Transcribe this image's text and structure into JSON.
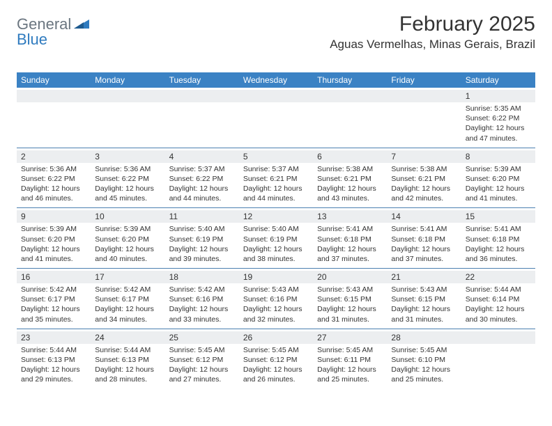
{
  "brand": {
    "text_general": "General",
    "text_blue": "Blue",
    "accent_color": "#2f7bbf"
  },
  "title": {
    "month": "February 2025",
    "location": "Aguas Vermelhas, Minas Gerais, Brazil"
  },
  "colors": {
    "header_bg": "#3b82c4",
    "header_text": "#ffffff",
    "band_bg": "#eceef0",
    "row_border": "#4a7fb0",
    "body_text": "#333333"
  },
  "dayHeaders": [
    "Sunday",
    "Monday",
    "Tuesday",
    "Wednesday",
    "Thursday",
    "Friday",
    "Saturday"
  ],
  "weeks": [
    [
      {
        "n": "",
        "sunrise": "",
        "sunset": "",
        "day_h": "",
        "day_m": ""
      },
      {
        "n": "",
        "sunrise": "",
        "sunset": "",
        "day_h": "",
        "day_m": ""
      },
      {
        "n": "",
        "sunrise": "",
        "sunset": "",
        "day_h": "",
        "day_m": ""
      },
      {
        "n": "",
        "sunrise": "",
        "sunset": "",
        "day_h": "",
        "day_m": ""
      },
      {
        "n": "",
        "sunrise": "",
        "sunset": "",
        "day_h": "",
        "day_m": ""
      },
      {
        "n": "",
        "sunrise": "",
        "sunset": "",
        "day_h": "",
        "day_m": ""
      },
      {
        "n": "1",
        "sunrise": "5:35 AM",
        "sunset": "6:22 PM",
        "day_h": "12",
        "day_m": "47"
      }
    ],
    [
      {
        "n": "2",
        "sunrise": "5:36 AM",
        "sunset": "6:22 PM",
        "day_h": "12",
        "day_m": "46"
      },
      {
        "n": "3",
        "sunrise": "5:36 AM",
        "sunset": "6:22 PM",
        "day_h": "12",
        "day_m": "45"
      },
      {
        "n": "4",
        "sunrise": "5:37 AM",
        "sunset": "6:22 PM",
        "day_h": "12",
        "day_m": "44"
      },
      {
        "n": "5",
        "sunrise": "5:37 AM",
        "sunset": "6:21 PM",
        "day_h": "12",
        "day_m": "44"
      },
      {
        "n": "6",
        "sunrise": "5:38 AM",
        "sunset": "6:21 PM",
        "day_h": "12",
        "day_m": "43"
      },
      {
        "n": "7",
        "sunrise": "5:38 AM",
        "sunset": "6:21 PM",
        "day_h": "12",
        "day_m": "42"
      },
      {
        "n": "8",
        "sunrise": "5:39 AM",
        "sunset": "6:20 PM",
        "day_h": "12",
        "day_m": "41"
      }
    ],
    [
      {
        "n": "9",
        "sunrise": "5:39 AM",
        "sunset": "6:20 PM",
        "day_h": "12",
        "day_m": "41"
      },
      {
        "n": "10",
        "sunrise": "5:39 AM",
        "sunset": "6:20 PM",
        "day_h": "12",
        "day_m": "40"
      },
      {
        "n": "11",
        "sunrise": "5:40 AM",
        "sunset": "6:19 PM",
        "day_h": "12",
        "day_m": "39"
      },
      {
        "n": "12",
        "sunrise": "5:40 AM",
        "sunset": "6:19 PM",
        "day_h": "12",
        "day_m": "38"
      },
      {
        "n": "13",
        "sunrise": "5:41 AM",
        "sunset": "6:18 PM",
        "day_h": "12",
        "day_m": "37"
      },
      {
        "n": "14",
        "sunrise": "5:41 AM",
        "sunset": "6:18 PM",
        "day_h": "12",
        "day_m": "37"
      },
      {
        "n": "15",
        "sunrise": "5:41 AM",
        "sunset": "6:18 PM",
        "day_h": "12",
        "day_m": "36"
      }
    ],
    [
      {
        "n": "16",
        "sunrise": "5:42 AM",
        "sunset": "6:17 PM",
        "day_h": "12",
        "day_m": "35"
      },
      {
        "n": "17",
        "sunrise": "5:42 AM",
        "sunset": "6:17 PM",
        "day_h": "12",
        "day_m": "34"
      },
      {
        "n": "18",
        "sunrise": "5:42 AM",
        "sunset": "6:16 PM",
        "day_h": "12",
        "day_m": "33"
      },
      {
        "n": "19",
        "sunrise": "5:43 AM",
        "sunset": "6:16 PM",
        "day_h": "12",
        "day_m": "32"
      },
      {
        "n": "20",
        "sunrise": "5:43 AM",
        "sunset": "6:15 PM",
        "day_h": "12",
        "day_m": "31"
      },
      {
        "n": "21",
        "sunrise": "5:43 AM",
        "sunset": "6:15 PM",
        "day_h": "12",
        "day_m": "31"
      },
      {
        "n": "22",
        "sunrise": "5:44 AM",
        "sunset": "6:14 PM",
        "day_h": "12",
        "day_m": "30"
      }
    ],
    [
      {
        "n": "23",
        "sunrise": "5:44 AM",
        "sunset": "6:13 PM",
        "day_h": "12",
        "day_m": "29"
      },
      {
        "n": "24",
        "sunrise": "5:44 AM",
        "sunset": "6:13 PM",
        "day_h": "12",
        "day_m": "28"
      },
      {
        "n": "25",
        "sunrise": "5:45 AM",
        "sunset": "6:12 PM",
        "day_h": "12",
        "day_m": "27"
      },
      {
        "n": "26",
        "sunrise": "5:45 AM",
        "sunset": "6:12 PM",
        "day_h": "12",
        "day_m": "26"
      },
      {
        "n": "27",
        "sunrise": "5:45 AM",
        "sunset": "6:11 PM",
        "day_h": "12",
        "day_m": "25"
      },
      {
        "n": "28",
        "sunrise": "5:45 AM",
        "sunset": "6:10 PM",
        "day_h": "12",
        "day_m": "25"
      },
      {
        "n": "",
        "sunrise": "",
        "sunset": "",
        "day_h": "",
        "day_m": ""
      }
    ]
  ],
  "labels": {
    "sunrise": "Sunrise: ",
    "sunset": "Sunset: ",
    "daylight_pre": "Daylight: ",
    "hours_word": " hours",
    "and_word": "and ",
    "minutes_word": " minutes."
  }
}
